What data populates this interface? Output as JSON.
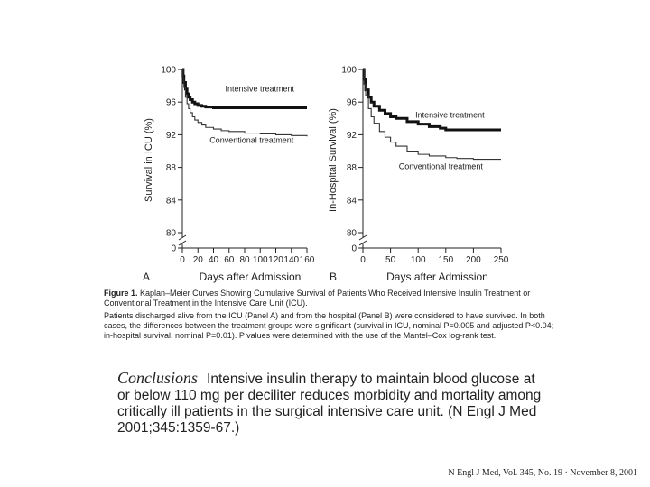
{
  "chart_data": [
    {
      "type": "line",
      "panel_label": "A",
      "xlabel": "Days after Admission",
      "ylabel": "Survival in ICU (%)",
      "xlim": [
        0,
        160
      ],
      "ylim": [
        80,
        100
      ],
      "yticks": [
        80,
        84,
        88,
        92,
        96,
        100
      ],
      "xticks": [
        0,
        20,
        40,
        60,
        80,
        100,
        120,
        140,
        160
      ],
      "xtick_labels": [
        "0",
        "20",
        "40",
        "60",
        "80",
        "100",
        "120",
        "140",
        "160"
      ],
      "ybreak_zero": "0",
      "series": [
        {
          "name": "Intensive treatment",
          "x": [
            0,
            1,
            2,
            4,
            6,
            8,
            10,
            13,
            16,
            20,
            25,
            30,
            40,
            50,
            60,
            160
          ],
          "values": [
            100,
            99.2,
            98.4,
            97.6,
            97.0,
            96.6,
            96.3,
            96.0,
            95.8,
            95.6,
            95.5,
            95.4,
            95.3,
            95.3,
            95.3,
            95.3
          ],
          "color": "#111111",
          "label_pos": [
            55,
            97.3
          ]
        },
        {
          "name": "Conventional treatment",
          "x": [
            0,
            1,
            2,
            4,
            6,
            8,
            10,
            13,
            16,
            20,
            25,
            30,
            40,
            50,
            60,
            80,
            100,
            120,
            140,
            160
          ],
          "values": [
            100,
            98.9,
            97.8,
            96.6,
            95.8,
            95.2,
            94.7,
            94.2,
            93.8,
            93.5,
            93.2,
            92.9,
            92.7,
            92.5,
            92.4,
            92.2,
            92.1,
            92.0,
            91.9,
            91.8
          ],
          "color": "#333333",
          "label_pos": [
            35,
            91.0
          ]
        }
      ]
    },
    {
      "type": "line",
      "panel_label": "B",
      "xlabel": "Days after Admission",
      "ylabel": "In-Hospital Survival (%)",
      "xlim": [
        0,
        250
      ],
      "ylim": [
        80,
        100
      ],
      "yticks": [
        80,
        84,
        88,
        92,
        96,
        100
      ],
      "xticks": [
        0,
        50,
        100,
        150,
        200,
        250
      ],
      "xtick_labels": [
        "0",
        "50",
        "100",
        "150",
        "200",
        "250"
      ],
      "ybreak_zero": "0",
      "series": [
        {
          "name": "Intensive treatment",
          "x": [
            0,
            2,
            5,
            10,
            15,
            20,
            30,
            40,
            50,
            60,
            80,
            100,
            120,
            140,
            150,
            170,
            250
          ],
          "values": [
            100,
            98.8,
            97.5,
            96.6,
            96.0,
            95.5,
            95.0,
            94.6,
            94.2,
            94.0,
            93.6,
            93.3,
            93.0,
            92.8,
            92.6,
            92.6,
            92.6
          ],
          "color": "#111111",
          "label_pos": [
            95,
            94.1
          ]
        },
        {
          "name": "Conventional treatment",
          "x": [
            0,
            2,
            5,
            10,
            15,
            20,
            30,
            40,
            50,
            60,
            80,
            100,
            120,
            150,
            170,
            200,
            250
          ],
          "values": [
            100,
            98.2,
            96.8,
            95.2,
            94.2,
            93.4,
            92.4,
            91.7,
            91.1,
            90.6,
            90.0,
            89.6,
            89.4,
            89.2,
            89.1,
            89.0,
            89.0
          ],
          "color": "#333333",
          "label_pos": [
            65,
            87.8
          ]
        }
      ]
    }
  ],
  "caption": {
    "figure_label": "Figure 1.",
    "title": "Kaplan–Meier Curves Showing Cumulative Survival of Patients Who Received Intensive Insulin Treatment or Conventional Treatment in the Intensive Care Unit (ICU).",
    "body": "Patients discharged alive from the ICU (Panel A) and from the hospital (Panel B) were considered to have survived. In both cases, the differences between the treatment groups were significant (survival in ICU, nominal P=0.005 and adjusted P<0.04; in-hospital survival, nominal P=0.01). P values were determined with the use of the Mantel–Cox log-rank test."
  },
  "conclusions": {
    "heading": "Conclusions",
    "text": "Intensive insulin therapy to maintain blood glucose at or below 110 mg per deciliter reduces morbidity and mortality among critically ill patients in the surgical intensive care unit. (N Engl J Med 2001;345:1359-67.)"
  },
  "citation": "N Engl J Med, Vol. 345, No. 19 · November 8, 2001"
}
